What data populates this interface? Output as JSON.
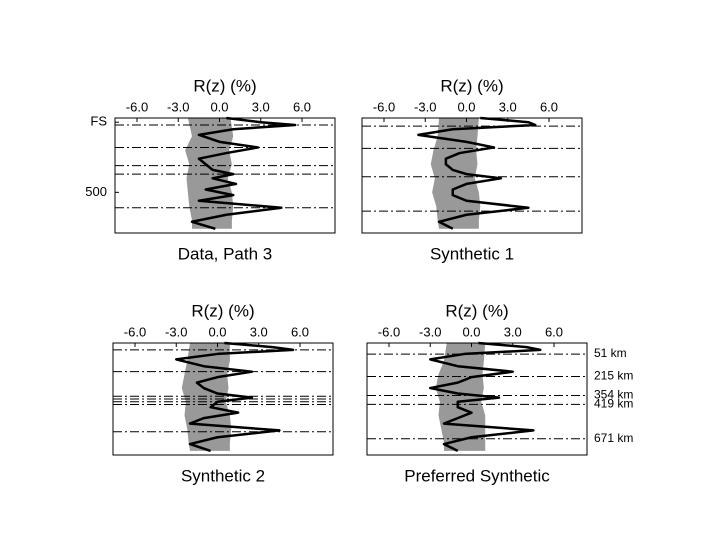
{
  "chart_data": [
    {
      "type": "line",
      "title": "Data, Path 3",
      "xlabel": "R(z) (%)",
      "xlim": [
        -7.6,
        8.4
      ],
      "xticks": [
        {
          "value": -6,
          "label": "-6.0"
        },
        {
          "value": -3,
          "label": "-3.0"
        },
        {
          "value": 0,
          "label": "0.0"
        },
        {
          "value": 3,
          "label": "3.0"
        },
        {
          "value": 6,
          "label": "6.0"
        }
      ],
      "ylim": [
        -30,
        790
      ],
      "yticks": [
        {
          "value": 0,
          "label": "FS"
        },
        500
      ],
      "depth": [
        -30,
        0,
        20,
        50,
        90,
        140,
        180,
        220,
        260,
        300,
        340,
        370,
        400,
        440,
        480,
        520,
        560,
        610,
        660,
        710,
        760
      ],
      "values": [
        0.5,
        3,
        5.5,
        1,
        -1.5,
        0,
        2.8,
        0.5,
        -1.5,
        -1,
        -0.5,
        1,
        -0.5,
        1.2,
        -1,
        1,
        -1.5,
        4.5,
        0.5,
        -2,
        -0.3
      ],
      "band_depth": [
        -30,
        100,
        200,
        300,
        400,
        500,
        600,
        700,
        760
      ],
      "band_low": [
        -2.3,
        -2.0,
        -2.5,
        -2.2,
        -2.4,
        -2.3,
        -2.2,
        -2.0,
        -2.0
      ],
      "band_high": [
        0.8,
        1.0,
        0.7,
        0.9,
        0.6,
        0.9,
        1.0,
        0.9,
        0.9
      ],
      "reflectors": [
        20,
        180,
        310,
        370,
        610
      ],
      "color": "#000000",
      "band_color": "#999999"
    },
    {
      "type": "line",
      "title": "Synthetic 1",
      "xlabel": "R(z) (%)",
      "xlim": [
        -7.6,
        8.4
      ],
      "xticks": [
        {
          "value": -6,
          "label": "-6.0"
        },
        {
          "value": -3,
          "label": "-3.0"
        },
        {
          "value": 0,
          "label": "0.0"
        },
        {
          "value": 3,
          "label": "3.0"
        },
        {
          "value": 6,
          "label": "6.0"
        }
      ],
      "ylim": [
        -30,
        790
      ],
      "depth": [
        -30,
        0,
        20,
        50,
        90,
        140,
        180,
        220,
        260,
        300,
        340,
        370,
        400,
        440,
        480,
        520,
        560,
        610,
        660,
        710,
        760
      ],
      "values": [
        1,
        4.5,
        5,
        -1,
        -3.5,
        0,
        2,
        -0.5,
        -1.5,
        -1.5,
        -1,
        0,
        2.5,
        0,
        -1,
        -1,
        0,
        4.5,
        0,
        -2,
        -1
      ],
      "band_depth": [
        -30,
        100,
        200,
        300,
        400,
        500,
        600,
        700,
        760
      ],
      "band_low": [
        -2.0,
        -2.1,
        -2.4,
        -2.6,
        -2.3,
        -2.5,
        -2.2,
        -2.1,
        -2.0
      ],
      "band_high": [
        0.9,
        0.8,
        0.7,
        0.8,
        0.6,
        0.9,
        1.0,
        0.9,
        0.9
      ],
      "reflectors": [
        28,
        187,
        389,
        634
      ],
      "color": "#000000",
      "band_color": "#999999"
    },
    {
      "type": "line",
      "title": "Synthetic 2",
      "xlabel": "R(z) (%)",
      "xlim": [
        -7.6,
        8.4
      ],
      "xticks": [
        {
          "value": -6,
          "label": "-6.0"
        },
        {
          "value": -3,
          "label": "-3.0"
        },
        {
          "value": 0,
          "label": "0.0"
        },
        {
          "value": 3,
          "label": "3.0"
        },
        {
          "value": 6,
          "label": "6.0"
        }
      ],
      "ylim": [
        -30,
        790
      ],
      "depth": [
        -30,
        0,
        20,
        50,
        90,
        140,
        180,
        220,
        260,
        300,
        340,
        370,
        400,
        440,
        480,
        520,
        560,
        610,
        660,
        710,
        760
      ],
      "values": [
        0.5,
        4,
        5.5,
        0,
        -3,
        -1,
        2.5,
        0,
        -1.5,
        -1,
        0,
        2.5,
        0,
        -0.5,
        1.5,
        -1,
        -2,
        4.5,
        0,
        -2,
        -0.5
      ],
      "band_depth": [
        -30,
        100,
        200,
        300,
        400,
        500,
        600,
        700,
        760
      ],
      "band_low": [
        -2.0,
        -2.2,
        -2.4,
        -2.6,
        -2.3,
        -2.4,
        -2.2,
        -2.1,
        -2.0
      ],
      "band_high": [
        0.9,
        0.9,
        0.7,
        0.8,
        0.6,
        0.9,
        1.0,
        0.9,
        0.9
      ],
      "reflectors": [
        20,
        180,
        360,
        380,
        400,
        420,
        620
      ],
      "color": "#000000",
      "band_color": "#999999"
    },
    {
      "type": "line",
      "title": "Preferred Synthetic",
      "xlabel": "R(z) (%)",
      "xlim": [
        -7.6,
        8.4
      ],
      "xticks": [
        {
          "value": -6,
          "label": "-6.0"
        },
        {
          "value": -3,
          "label": "-3.0"
        },
        {
          "value": 0,
          "label": "0.0"
        },
        {
          "value": 3,
          "label": "3.0"
        },
        {
          "value": 6,
          "label": "6.0"
        }
      ],
      "ylim": [
        -30,
        790
      ],
      "depth": [
        -30,
        0,
        20,
        50,
        90,
        140,
        180,
        220,
        260,
        300,
        340,
        370,
        400,
        440,
        480,
        520,
        560,
        610,
        660,
        710,
        760
      ],
      "values": [
        0.5,
        4,
        5,
        -0.5,
        -3,
        -1,
        3,
        0,
        -1,
        -3,
        -1,
        2,
        -1,
        -1,
        0,
        -1,
        -2,
        4.5,
        0,
        -2,
        -1
      ],
      "band_depth": [
        -30,
        100,
        200,
        300,
        400,
        500,
        600,
        700,
        760
      ],
      "band_low": [
        -1.8,
        -2.0,
        -2.4,
        -2.6,
        -2.3,
        -2.4,
        -2.2,
        -2.0,
        -2.0
      ],
      "band_high": [
        1.0,
        0.9,
        0.8,
        0.9,
        0.7,
        1.0,
        1.0,
        1.0,
        1.0
      ],
      "reflectors": [
        51,
        215,
        354,
        419,
        671
      ],
      "reflector_labels": [
        "51 km",
        "215 km",
        "354 km",
        "419 km",
        "671 km"
      ],
      "color": "#000000",
      "band_color": "#999999"
    }
  ]
}
